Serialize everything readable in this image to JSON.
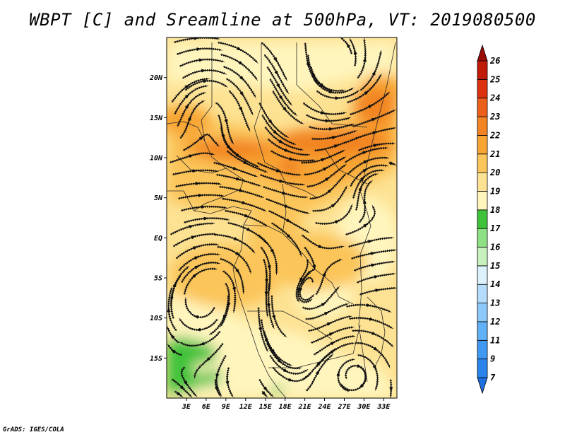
{
  "title": "WBPT [C] and Sreamline at 500hPa, VT: 2019080500",
  "credit": "GrADS: IGES/COLA",
  "map": {
    "lon_range": [
      0,
      35
    ],
    "lat_range": [
      -20,
      25
    ],
    "lon_ticks": [
      {
        "value": 3,
        "label": "3E"
      },
      {
        "value": 6,
        "label": "6E"
      },
      {
        "value": 9,
        "label": "9E"
      },
      {
        "value": 12,
        "label": "12E"
      },
      {
        "value": 15,
        "label": "15E"
      },
      {
        "value": 18,
        "label": "18E"
      },
      {
        "value": 21,
        "label": "21E"
      },
      {
        "value": 24,
        "label": "24E"
      },
      {
        "value": 27,
        "label": "27E"
      },
      {
        "value": 30,
        "label": "30E"
      },
      {
        "value": 33,
        "label": "33E"
      }
    ],
    "lat_ticks": [
      {
        "value": 20,
        "label": "20N"
      },
      {
        "value": 15,
        "label": "15N"
      },
      {
        "value": 10,
        "label": "10N"
      },
      {
        "value": 5,
        "label": "5N"
      },
      {
        "value": 0,
        "label": "EQ"
      },
      {
        "value": -5,
        "label": "5S"
      },
      {
        "value": -10,
        "label": "10S"
      },
      {
        "value": -15,
        "label": "15S"
      }
    ]
  },
  "colorbar": {
    "labels": [
      "7",
      "9",
      "11",
      "12",
      "13",
      "14",
      "15",
      "16",
      "17",
      "18",
      "19",
      "20",
      "21",
      "22",
      "23",
      "24",
      "25",
      "26"
    ],
    "colors": [
      "#1e6fe0",
      "#2a84ec",
      "#3f98f2",
      "#62b0f6",
      "#8cc8fa",
      "#b6dcfc",
      "#ddf1fc",
      "#c6f0be",
      "#8ee085",
      "#3fc23a",
      "#fff5bd",
      "#fde293",
      "#fbc55a",
      "#f8a433",
      "#f28424",
      "#ec5f1a",
      "#dd3210",
      "#c01a08",
      "#9b0d04"
    ]
  }
}
